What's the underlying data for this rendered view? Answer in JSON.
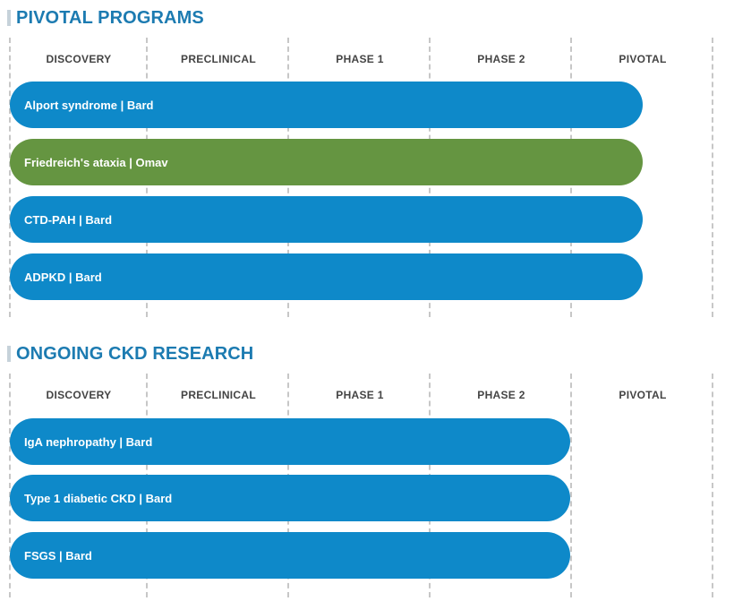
{
  "stages": [
    "DISCOVERY",
    "PRECLINICAL",
    "PHASE 1",
    "PHASE 2",
    "PIVOTAL"
  ],
  "colors": {
    "title": "#1c7bb1",
    "bar_blue": "#0e89c9",
    "bar_green": "#659541",
    "grid": "#c7c7c7",
    "stage_text": "#444444"
  },
  "pivotal": {
    "title": "PIVOTAL PROGRAMS",
    "programs": [
      {
        "label": "Alport syndrome | Bard",
        "stage": "PIVOTAL",
        "color": "#0e89c9"
      },
      {
        "label": "Friedreich's ataxia | Omav",
        "stage": "PIVOTAL",
        "color": "#659541"
      },
      {
        "label": "CTD-PAH | Bard",
        "stage": "PIVOTAL",
        "color": "#0e89c9"
      },
      {
        "label": "ADPKD | Bard",
        "stage": "PIVOTAL",
        "color": "#0e89c9"
      }
    ]
  },
  "ckd": {
    "title": "ONGOING CKD RESEARCH",
    "programs": [
      {
        "label": "IgA nephropathy | Bard",
        "stage": "PHASE 2",
        "color": "#0e89c9"
      },
      {
        "label": "Type 1 diabetic CKD | Bard",
        "stage": "PHASE 2",
        "color": "#0e89c9"
      },
      {
        "label": "FSGS | Bard",
        "stage": "PHASE 2",
        "color": "#0e89c9"
      }
    ]
  }
}
